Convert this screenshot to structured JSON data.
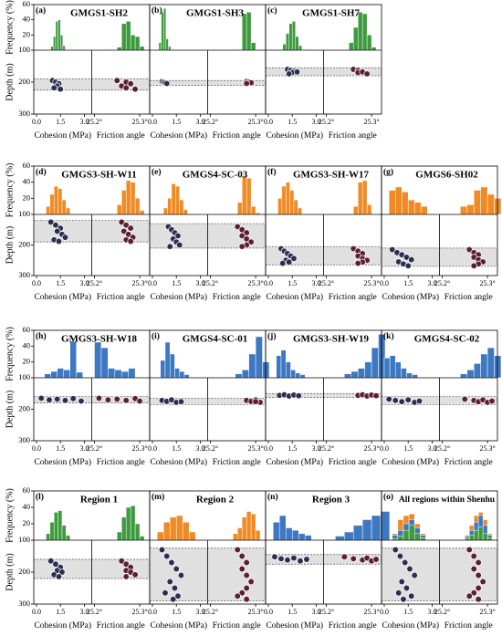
{
  "axes": {
    "frequency_label": "Frequency (%)",
    "depth_label": "Depth (m)",
    "cohesion_label": "Cohesion (MPa)",
    "friction_label": "Friction angle",
    "frequency_lim": [
      0,
      60
    ],
    "frequency_ticks": [
      20,
      40,
      60
    ],
    "depth_lim": [
      100,
      300
    ],
    "depth_ticks": [
      100,
      200,
      300
    ],
    "cohesion_lim": [
      -0.17,
      3.46
    ],
    "cohesion_ticks": [
      {
        "value": 0,
        "label": "0.0"
      },
      1.5,
      {
        "value": 3,
        "label": "3.0"
      }
    ],
    "friction_lim": [
      25.194,
      25.322
    ],
    "friction_ticks": [
      {
        "value": 25.2,
        "label": "25.2°"
      },
      {
        "value": 25.3,
        "label": "25.3°"
      }
    ],
    "scatter_colors": [
      "#2b2f4e",
      "#5b1f33"
    ]
  },
  "chart_data": [
    {
      "type": "histogram",
      "label": "(a)",
      "title": "GMGS1-SH2",
      "cohesion_bins": [
        0.9,
        1.05,
        1.2,
        1.35,
        1.5,
        1.65,
        1.8
      ],
      "friction_bins": [
        25.25,
        25.26,
        25.27,
        25.28,
        25.29,
        25.3,
        25.31
      ],
      "hists": [
        {
          "color": "#3d9a3d",
          "cohesion": [
            5,
            18,
            38,
            40,
            20,
            6
          ],
          "friction": [
            4,
            35,
            38,
            20,
            18,
            5
          ]
        }
      ],
      "depth_band": [
        190,
        225
      ],
      "points": {
        "cohesion": [
          1.0,
          1.2,
          1.4,
          1.3,
          1.1,
          1.5
        ],
        "friction": [
          25.25,
          25.27,
          25.28,
          25.26,
          25.27,
          25.29
        ],
        "depth": [
          195,
          200,
          205,
          212,
          218,
          222
        ]
      }
    },
    {
      "type": "histogram",
      "label": "(b)",
      "title": "GMGS1-SH3",
      "cohesion_bins": [
        0.4,
        0.55,
        0.7,
        0.85,
        1.0,
        1.15,
        1.3
      ],
      "friction_bins": [
        25.25,
        25.26,
        25.27,
        25.28,
        25.29,
        25.3,
        25.31
      ],
      "hists": [
        {
          "color": "#3d9a3d",
          "cohesion": [
            10,
            50,
            55,
            15,
            5,
            0
          ],
          "friction": [
            0,
            0,
            48,
            50,
            10,
            0
          ]
        }
      ],
      "depth_band": [
        195,
        210
      ],
      "points": {
        "cohesion": [
          0.6,
          0.7,
          0.8,
          0.9
        ],
        "friction": [
          25.28,
          25.285,
          25.29,
          25.28
        ],
        "depth": [
          198,
          200,
          202,
          204
        ]
      }
    },
    {
      "type": "histogram",
      "label": "(c)",
      "title": "GMGS1-SH7",
      "cohesion_bins": [
        0.9,
        1.1,
        1.3,
        1.5,
        1.7,
        1.9,
        2.1
      ],
      "friction_bins": [
        25.25,
        25.26,
        25.27,
        25.28,
        25.29,
        25.3,
        25.31
      ],
      "hists": [
        {
          "color": "#3d9a3d",
          "cohesion": [
            8,
            22,
            35,
            38,
            18,
            6
          ],
          "friction": [
            10,
            30,
            50,
            48,
            20,
            4
          ]
        }
      ],
      "depth_band": [
        155,
        180
      ],
      "points": {
        "cohesion": [
          1.2,
          1.4,
          1.6,
          1.5,
          1.8,
          1.3
        ],
        "friction": [
          25.26,
          25.27,
          25.28,
          25.27,
          25.28,
          25.29
        ],
        "depth": [
          160,
          163,
          166,
          170,
          168,
          174
        ]
      }
    },
    {
      "type": "histogram",
      "label": "(d)",
      "title": "GMGS3-SH-W11",
      "cohesion_bins": [
        0.6,
        0.85,
        1.1,
        1.35,
        1.6,
        1.85,
        2.1
      ],
      "friction_bins": [
        25.25,
        25.26,
        25.27,
        25.28,
        25.29,
        25.3,
        25.31
      ],
      "hists": [
        {
          "color": "#f08a24",
          "cohesion": [
            10,
            25,
            35,
            32,
            18,
            8
          ],
          "friction": [
            12,
            30,
            42,
            40,
            20,
            5
          ]
        }
      ],
      "depth_band": [
        120,
        190
      ],
      "points": {
        "cohesion": [
          0.9,
          1.2,
          1.5,
          1.3,
          1.6,
          1.8,
          1.1,
          1.4
        ],
        "friction": [
          25.26,
          25.27,
          25.28,
          25.265,
          25.275,
          25.285,
          25.27,
          25.28
        ],
        "depth": [
          125,
          135,
          145,
          155,
          165,
          175,
          183,
          188
        ]
      }
    },
    {
      "type": "histogram",
      "label": "(e)",
      "title": "GMGS4-SC-03",
      "cohesion_bins": [
        0.7,
        0.95,
        1.2,
        1.45,
        1.7,
        1.95,
        2.2
      ],
      "friction_bins": [
        25.25,
        25.26,
        25.27,
        25.28,
        25.29,
        25.3,
        25.31
      ],
      "hists": [
        {
          "color": "#f08a24",
          "cohesion": [
            8,
            20,
            38,
            35,
            18,
            6
          ],
          "friction": [
            0,
            15,
            48,
            45,
            10,
            2
          ]
        }
      ],
      "depth_band": [
        130,
        210
      ],
      "points": {
        "cohesion": [
          1.0,
          1.2,
          1.4,
          1.6,
          1.3,
          1.5,
          1.7,
          1.1
        ],
        "friction": [
          25.26,
          25.27,
          25.28,
          25.27,
          25.28,
          25.29,
          25.28,
          25.27
        ],
        "depth": [
          140,
          150,
          160,
          170,
          180,
          190,
          200,
          205
        ]
      }
    },
    {
      "type": "histogram",
      "label": "(f)",
      "title": "GMGS3-SH-W17",
      "cohesion_bins": [
        0.6,
        0.85,
        1.1,
        1.35,
        1.6,
        1.85,
        2.1
      ],
      "friction_bins": [
        25.25,
        25.26,
        25.27,
        25.28,
        25.29,
        25.3,
        25.31
      ],
      "hists": [
        {
          "color": "#f08a24",
          "cohesion": [
            20,
            35,
            40,
            30,
            18,
            8
          ],
          "friction": [
            0,
            10,
            40,
            42,
            12,
            0
          ]
        }
      ],
      "depth_band": [
        205,
        265
      ],
      "points": {
        "cohesion": [
          0.8,
          1.0,
          1.2,
          1.4,
          1.6,
          1.1,
          1.3,
          0.9
        ],
        "friction": [
          25.26,
          25.27,
          25.28,
          25.27,
          25.28,
          25.29,
          25.28,
          25.27
        ],
        "depth": [
          212,
          220,
          228,
          236,
          244,
          250,
          256,
          260
        ]
      }
    },
    {
      "type": "histogram",
      "label": "(g)",
      "title": "GMGS6-SH02",
      "cohesion_bins": [
        0.3,
        0.7,
        1.1,
        1.5,
        1.9,
        2.3,
        2.7
      ],
      "friction_bins": [
        25.24,
        25.255,
        25.27,
        25.285,
        25.3,
        25.315,
        25.33
      ],
      "hists": [
        {
          "color": "#f08a24",
          "cohesion": [
            30,
            34,
            28,
            18,
            15,
            10
          ],
          "friction": [
            10,
            12,
            30,
            34,
            25,
            20
          ]
        }
      ],
      "depth_band": [
        210,
        270
      ],
      "points": {
        "cohesion": [
          0.5,
          0.8,
          1.1,
          1.4,
          1.7,
          0.9,
          1.2,
          1.5
        ],
        "friction": [
          25.26,
          25.27,
          25.28,
          25.27,
          25.28,
          25.29,
          25.28,
          25.27
        ],
        "depth": [
          215,
          225,
          232,
          240,
          248,
          255,
          262,
          268
        ]
      }
    },
    {
      "type": "histogram",
      "label": "(h)",
      "title": "GMGS3-SH-W18",
      "cohesion_bins": [
        0.5,
        0.9,
        1.3,
        1.7,
        2.1,
        2.5,
        2.9
      ],
      "friction_bins": [
        25.2,
        25.215,
        25.23,
        25.245,
        25.26,
        25.275,
        25.29
      ],
      "hists": [
        {
          "color": "#3d78c2",
          "cohesion": [
            5,
            8,
            12,
            10,
            46,
            7
          ],
          "friction": [
            45,
            38,
            12,
            10,
            8,
            12
          ]
        }
      ],
      "depth_band": [
        160,
        180
      ],
      "points": {
        "cohesion": [
          0.3,
          0.8,
          1.3,
          1.8,
          2.3,
          2.8
        ],
        "friction": [
          25.21,
          25.23,
          25.25,
          25.27,
          25.29,
          25.3
        ],
        "depth": [
          165,
          170,
          168,
          172,
          166,
          174
        ]
      }
    },
    {
      "type": "histogram",
      "label": "(i)",
      "title": "GMGS4-SC-01",
      "cohesion_bins": [
        0.5,
        0.8,
        1.1,
        1.4,
        1.7,
        2.0,
        2.3
      ],
      "friction_bins": [
        25.24,
        25.255,
        25.27,
        25.285,
        25.3,
        25.315,
        25.33
      ],
      "hists": [
        {
          "color": "#3d78c2",
          "cohesion": [
            22,
            45,
            30,
            12,
            8,
            4
          ],
          "friction": [
            0,
            5,
            10,
            30,
            52,
            20
          ]
        }
      ],
      "depth_band": [
        165,
        185
      ],
      "points": {
        "cohesion": [
          0.6,
          0.9,
          1.2,
          1.5,
          1.8
        ],
        "friction": [
          25.28,
          25.29,
          25.3,
          25.31,
          25.3
        ],
        "depth": [
          172,
          175,
          170,
          178,
          176
        ]
      }
    },
    {
      "type": "histogram",
      "label": "(j)",
      "title": "GMGS3-SH-W19",
      "cohesion_bins": [
        0.5,
        0.8,
        1.1,
        1.4,
        1.7,
        2.0,
        2.3
      ],
      "friction_bins": [
        25.24,
        25.255,
        25.27,
        25.285,
        25.3,
        25.315,
        25.33
      ],
      "hists": [
        {
          "color": "#3d78c2",
          "cohesion": [
            28,
            35,
            20,
            10,
            6,
            4
          ],
          "friction": [
            5,
            8,
            12,
            20,
            38,
            55
          ]
        }
      ],
      "depth_band": [
        150,
        162
      ],
      "points": {
        "cohesion": [
          0.7,
          1.0,
          1.3,
          1.6,
          1.9
        ],
        "friction": [
          25.27,
          25.28,
          25.29,
          25.3,
          25.31
        ],
        "depth": [
          156,
          154,
          158,
          155,
          157
        ]
      }
    },
    {
      "type": "histogram",
      "label": "(k)",
      "title": "GMGS4-SC-02",
      "cohesion_bins": [
        0.0,
        0.35,
        0.7,
        1.05,
        1.4,
        1.75,
        2.1
      ],
      "friction_bins": [
        25.24,
        25.255,
        25.27,
        25.285,
        25.3,
        25.315,
        25.33
      ],
      "hists": [
        {
          "color": "#3d78c2",
          "cohesion": [
            25,
            28,
            20,
            12,
            6,
            4
          ],
          "friction": [
            5,
            10,
            18,
            30,
            38,
            28
          ]
        }
      ],
      "depth_band": [
        160,
        185
      ],
      "points": {
        "cohesion": [
          0.3,
          0.7,
          1.1,
          1.5,
          1.9,
          2.2
        ],
        "friction": [
          25.25,
          25.27,
          25.28,
          25.29,
          25.3,
          25.31
        ],
        "depth": [
          168,
          172,
          176,
          170,
          178,
          174
        ]
      }
    },
    {
      "type": "histogram",
      "label": "(l)",
      "title": "Region 1",
      "cohesion_bins": [
        0.6,
        0.85,
        1.1,
        1.35,
        1.6,
        1.85,
        2.1
      ],
      "friction_bins": [
        25.25,
        25.26,
        25.27,
        25.28,
        25.29,
        25.3,
        25.31
      ],
      "hists": [
        {
          "color": "#3d9a3d",
          "cohesion": [
            8,
            22,
            34,
            36,
            18,
            6
          ],
          "friction": [
            10,
            28,
            40,
            42,
            20,
            5
          ]
        }
      ],
      "depth_band": [
        160,
        220
      ],
      "points": {
        "cohesion": [
          0.9,
          1.2,
          1.5,
          1.3,
          1.6,
          1.1,
          1.4
        ],
        "friction": [
          25.26,
          25.27,
          25.28,
          25.27,
          25.28,
          25.29,
          25.27
        ],
        "depth": [
          165,
          175,
          185,
          195,
          200,
          208,
          214
        ]
      }
    },
    {
      "type": "histogram",
      "label": "(m)",
      "title": "Region 2",
      "cohesion_bins": [
        0.3,
        0.7,
        1.1,
        1.5,
        1.9,
        2.3,
        2.7
      ],
      "friction_bins": [
        25.25,
        25.26,
        25.27,
        25.28,
        25.29,
        25.3,
        25.31
      ],
      "hists": [
        {
          "color": "#f08a24",
          "cohesion": [
            10,
            22,
            28,
            30,
            22,
            10
          ],
          "friction": [
            8,
            15,
            28,
            35,
            32,
            12
          ]
        }
      ],
      "depth_band": [
        125,
        290
      ],
      "points": {
        "cohesion": [
          0.6,
          0.9,
          1.2,
          1.5,
          1.8,
          1.1,
          1.4,
          0.8,
          1.6,
          1.3
        ],
        "friction": [
          25.26,
          25.27,
          25.28,
          25.27,
          25.28,
          25.29,
          25.28,
          25.27,
          25.26,
          25.28
        ],
        "depth": [
          130,
          150,
          170,
          190,
          210,
          230,
          250,
          265,
          275,
          285
        ]
      }
    },
    {
      "type": "histogram",
      "label": "(n)",
      "title": "Region 3",
      "cohesion_bins": [
        0.3,
        0.7,
        1.1,
        1.5,
        1.9,
        2.3,
        2.7
      ],
      "friction_bins": [
        25.22,
        25.24,
        25.26,
        25.28,
        25.3,
        25.32,
        25.34
      ],
      "hists": [
        {
          "color": "#3d78c2",
          "cohesion": [
            22,
            30,
            15,
            12,
            8,
            6
          ],
          "friction": [
            5,
            10,
            18,
            25,
            30,
            35
          ]
        }
      ],
      "depth_band": [
        145,
        175
      ],
      "points": {
        "cohesion": [
          0.4,
          0.8,
          1.2,
          1.6,
          2.0,
          2.4
        ],
        "friction": [
          25.24,
          25.26,
          25.28,
          25.29,
          25.3,
          25.31
        ],
        "depth": [
          152,
          158,
          162,
          156,
          165,
          160
        ]
      }
    },
    {
      "type": "histogram",
      "label": "(o)",
      "title": "All regions within Shenhu",
      "cohesion_bins": [
        0.5,
        0.85,
        1.2,
        1.55,
        1.9,
        2.25,
        2.6
      ],
      "friction_bins": [
        25.25,
        25.26,
        25.27,
        25.28,
        25.29,
        25.3,
        25.31
      ],
      "hists": [
        {
          "color": "#f08a24",
          "cohesion": [
            8,
            25,
            30,
            32,
            20,
            8
          ],
          "friction": [
            6,
            18,
            30,
            34,
            25,
            8
          ]
        },
        {
          "color": "#3d78c2",
          "cohesion": [
            6,
            12,
            20,
            25,
            15,
            6
          ],
          "friction": [
            4,
            12,
            22,
            30,
            18,
            6
          ]
        },
        {
          "color": "#3d9a3d",
          "cohesion": [
            2,
            5,
            12,
            18,
            8,
            3
          ],
          "friction": [
            2,
            6,
            12,
            16,
            8,
            3
          ]
        }
      ],
      "depth_band": [
        125,
        290
      ],
      "points": {
        "cohesion": [
          0.7,
          1.0,
          1.3,
          1.6,
          1.9,
          1.1,
          1.4,
          0.9,
          1.7,
          1.2
        ],
        "friction": [
          25.26,
          25.27,
          25.28,
          25.27,
          25.28,
          25.29,
          25.28,
          25.27,
          25.26,
          25.28
        ],
        "depth": [
          130,
          150,
          170,
          190,
          210,
          230,
          250,
          265,
          275,
          285
        ]
      }
    }
  ]
}
